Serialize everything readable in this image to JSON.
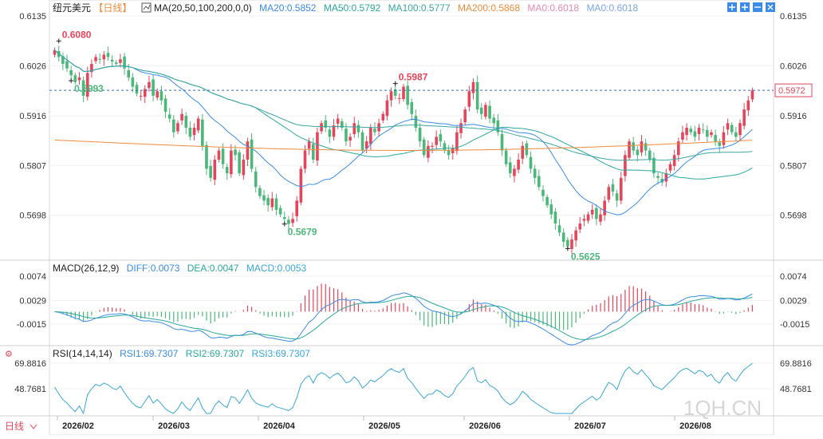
{
  "header": {
    "symbol": "纽元美元",
    "period": "【日线】",
    "ma_label": "MA(20,50,100,200,0,0)",
    "ma_values": [
      {
        "text": "MA20:0.5852",
        "color": "#3b8be6"
      },
      {
        "text": "MA50:0.5792",
        "color": "#2aa89a"
      },
      {
        "text": "MA100:0.5777",
        "color": "#3aa6a0"
      },
      {
        "text": "MA200:0.5868",
        "color": "#f08a3c"
      },
      {
        "text": "MA0:0.6018",
        "color": "#e58ab0"
      },
      {
        "text": "MA0:0.6018",
        "color": "#7aa5e8"
      }
    ]
  },
  "toolbar": {
    "icons": [
      "move-icon",
      "zoom-in-icon",
      "zoom-out-icon",
      "close-icon"
    ]
  },
  "macd": {
    "label": "MACD(26,12,9)",
    "diff": "DIFF:0.0073",
    "dea": "DEA:0.0047",
    "macd": "MACD:0.0053"
  },
  "rsi": {
    "label": "RSI(14,14,14)",
    "rsi1": "RSI1:69.7307",
    "rsi2": "RSI2:69.7307",
    "rsi3": "RSI3:69.7307"
  },
  "footer": {
    "period_tab": "日线",
    "watermark": "1QH.CN"
  },
  "colors": {
    "up": "#e5455a",
    "down": "#4bb87a",
    "ma20": "#3b8be6",
    "ma50": "#2aa89a",
    "ma200": "#f08a3c"
  },
  "chart_data": {
    "type": "candlestick",
    "price_ticks": [
      "0.6135",
      "0.6026",
      "0.5916",
      "0.5807",
      "0.5698"
    ],
    "price_range": [
      0.561,
      0.6135
    ],
    "current_price": "0.5972",
    "annotations": [
      {
        "text": "0.6080",
        "value": 0.608
      },
      {
        "text": "0.5993",
        "value": 0.5993
      },
      {
        "text": "0.5987",
        "value": 0.5987
      },
      {
        "text": "0.5679",
        "value": 0.5679
      },
      {
        "text": "0.5625",
        "value": 0.5625
      }
    ],
    "macd_ticks": [
      "0.0074",
      "0.0029",
      "-0.0015"
    ],
    "rsi_ticks": [
      "69.8816",
      "48.7681"
    ],
    "x_labels": [
      "2026/02",
      "2026/03",
      "2026/04",
      "2026/05",
      "2026/06",
      "2026/07",
      "2026/08"
    ],
    "close_series": [
      0.606,
      0.6045,
      0.603,
      0.602,
      0.6005,
      0.599,
      0.6,
      0.596,
      0.601,
      0.603,
      0.6045,
      0.604,
      0.605,
      0.6045,
      0.6035,
      0.603,
      0.604,
      0.602,
      0.6,
      0.598,
      0.5965,
      0.596,
      0.5975,
      0.599,
      0.596,
      0.597,
      0.595,
      0.5925,
      0.591,
      0.588,
      0.59,
      0.592,
      0.589,
      0.587,
      0.589,
      0.591,
      0.585,
      0.58,
      0.578,
      0.582,
      0.584,
      0.581,
      0.579,
      0.584,
      0.583,
      0.579,
      0.582,
      0.586,
      0.58,
      0.576,
      0.574,
      0.573,
      0.572,
      0.5735,
      0.571,
      0.57,
      0.569,
      0.5679,
      0.569,
      0.573,
      0.58,
      0.584,
      0.586,
      0.582,
      0.588,
      0.59,
      0.589,
      0.587,
      0.5895,
      0.591,
      0.589,
      0.586,
      0.587,
      0.59,
      0.588,
      0.584,
      0.586,
      0.589,
      0.588,
      0.59,
      0.592,
      0.595,
      0.597,
      0.596,
      0.5955,
      0.598,
      0.594,
      0.592,
      0.589,
      0.586,
      0.583,
      0.585,
      0.585,
      0.587,
      0.586,
      0.584,
      0.583,
      0.5845,
      0.588,
      0.59,
      0.593,
      0.597,
      0.599,
      0.593,
      0.592,
      0.594,
      0.591,
      0.59,
      0.588,
      0.584,
      0.581,
      0.579,
      0.58,
      0.582,
      0.585,
      0.583,
      0.58,
      0.578,
      0.576,
      0.574,
      0.572,
      0.57,
      0.568,
      0.566,
      0.564,
      0.563,
      0.5645,
      0.5665,
      0.568,
      0.569,
      0.57,
      0.571,
      0.569,
      0.57,
      0.573,
      0.576,
      0.575,
      0.573,
      0.578,
      0.583,
      0.586,
      0.584,
      0.583,
      0.586,
      0.584,
      0.582,
      0.579,
      0.578,
      0.577,
      0.579,
      0.581,
      0.583,
      0.586,
      0.588,
      0.589,
      0.588,
      0.587,
      0.589,
      0.5885,
      0.587,
      0.588,
      0.586,
      0.585,
      0.588,
      0.59,
      0.588,
      0.587,
      0.59,
      0.593,
      0.595,
      0.5972
    ]
  }
}
